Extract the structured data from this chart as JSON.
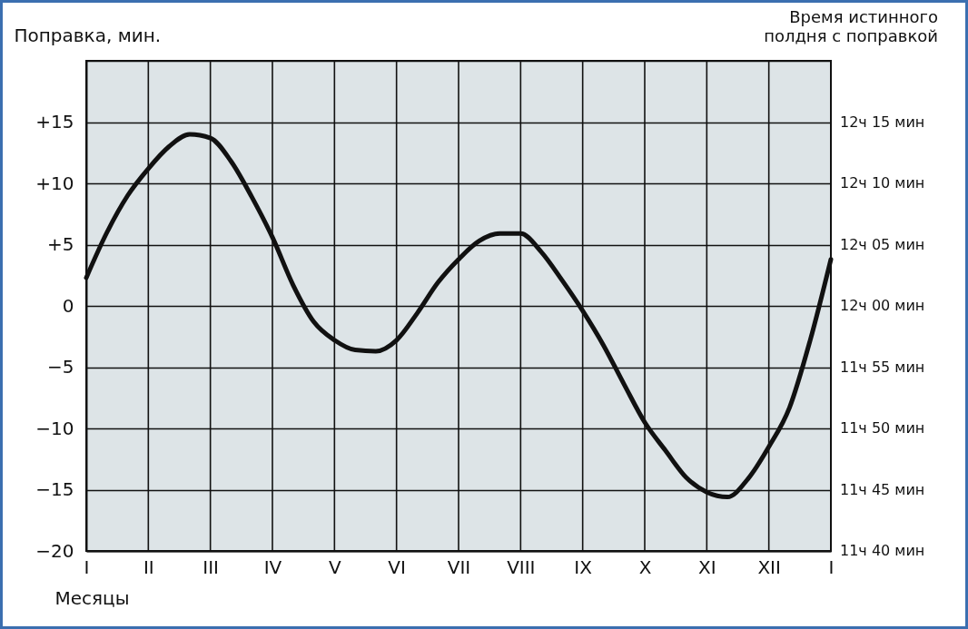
{
  "chart_data": {
    "type": "line",
    "ylabel": "Поправка, мин.",
    "y2label": "Время истинного\nполдня с поправкой",
    "xlabel": "Месяцы",
    "categories": [
      "I",
      null,
      null,
      "II",
      null,
      null,
      "III",
      null,
      null,
      "IV",
      null,
      null,
      "V",
      null,
      null,
      "VI",
      null,
      null,
      "VII",
      null,
      null,
      "VIII",
      null,
      null,
      "IX",
      null,
      null,
      "X",
      null,
      null,
      "XI",
      null,
      null,
      "XII",
      null,
      null,
      "I"
    ],
    "series": [
      {
        "color": "#111111",
        "values": [
          2.3,
          6.0,
          9.0,
          11.2,
          13.0,
          14.0,
          13.7,
          11.8,
          8.9,
          5.6,
          1.7,
          -1.3,
          -2.8,
          -3.6,
          -3.7,
          -2.8,
          -0.6,
          1.9,
          3.8,
          5.3,
          5.9,
          5.9,
          4.4,
          2.1,
          -0.4,
          -3.2,
          -6.4,
          -9.5,
          -11.8,
          -14.0,
          -15.2,
          -15.6,
          -14.1,
          -11.5,
          -8.3,
          -2.8,
          3.8
        ]
      }
    ],
    "ylim": [
      -20,
      20
    ],
    "yticks": [
      {
        "value": 20,
        "label": null
      },
      {
        "value": 15,
        "label": "+15"
      },
      {
        "value": 10,
        "label": "+10"
      },
      {
        "value": 5,
        "label": "+5"
      },
      0,
      {
        "value": -5,
        "label": "−5"
      },
      {
        "value": -10,
        "label": "−10"
      },
      {
        "value": -15,
        "label": "−15"
      },
      {
        "value": -20,
        "label": "−20"
      }
    ],
    "annotations": [
      "12ч 15 мин",
      "12ч 10 мин",
      "12ч 05 мин",
      "12ч 00 мин",
      "11ч 55 мин",
      "11ч 50 мин",
      "11ч 45 мин",
      "11ч 40 мин"
    ],
    "grid": true,
    "marker": "none",
    "line_style": "solid"
  }
}
